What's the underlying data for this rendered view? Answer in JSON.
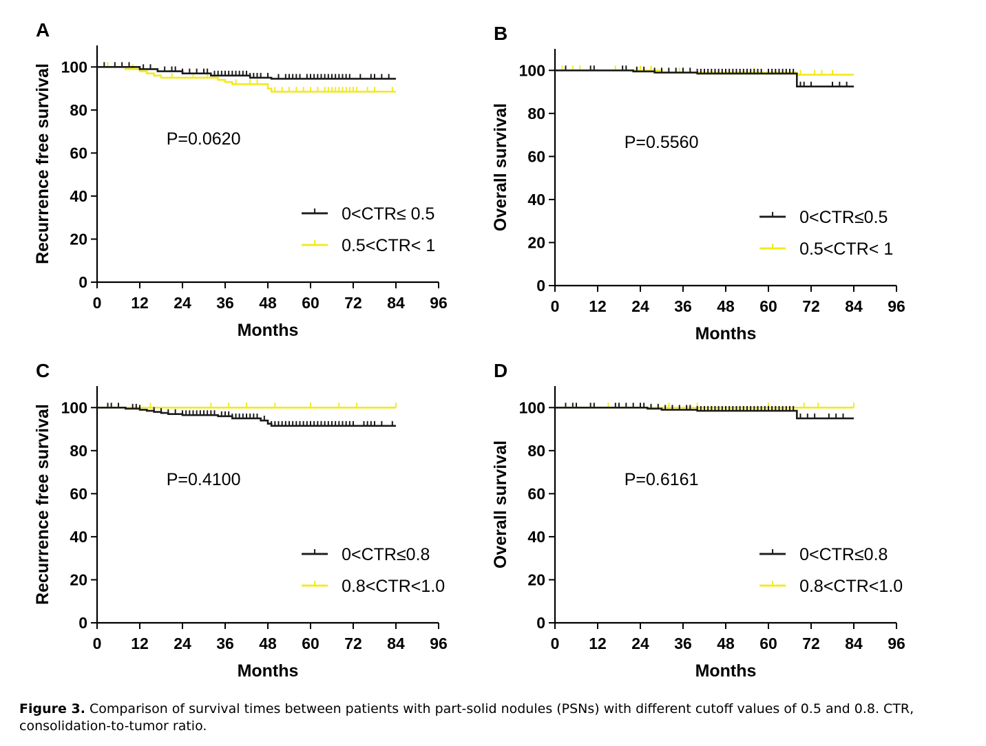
{
  "caption": {
    "label": "Figure 3.",
    "text": " Comparison of survival times between patients with part-solid nodules (PSNs) with different cutoff values of 0.5 and 0.8. CTR, consolidation-to-tumor ratio."
  },
  "colors": {
    "black": "#1a1a1a",
    "yellow": "#f2ea1c"
  },
  "chart_data": [
    {
      "panel": "A",
      "type": "line",
      "ylabel": "Recurrence free survival",
      "xlabel": "Months",
      "xticks": [
        0,
        12,
        24,
        36,
        48,
        60,
        72,
        84,
        96
      ],
      "yticks": [
        0,
        20,
        40,
        60,
        80,
        100
      ],
      "xlim": [
        0,
        96
      ],
      "ylim": [
        0,
        110
      ],
      "pvalue": "P=0.0620",
      "legend_position": "bottom-right",
      "series": [
        {
          "name": "0<CTR≤ 0.5",
          "color": "#1a1a1a",
          "x": [
            0,
            12,
            17,
            24,
            32,
            43,
            49,
            84
          ],
          "y": [
            100,
            99,
            98,
            97,
            96,
            95,
            94.5,
            94.5
          ],
          "censor": [
            2,
            5,
            7,
            9,
            13,
            15,
            19,
            21,
            22,
            24,
            26,
            28,
            30,
            31,
            33,
            34,
            35,
            36,
            37,
            38,
            39,
            40,
            41,
            42,
            43,
            44,
            45,
            46,
            48,
            51,
            53,
            54,
            55,
            56,
            57,
            59,
            60,
            61,
            62,
            63,
            64,
            65,
            66,
            67,
            68,
            69,
            70,
            71,
            74,
            77,
            78,
            80,
            82
          ]
        },
        {
          "name": "0.5<CTR< 1",
          "color": "#f2ea1c",
          "x": [
            0,
            8,
            12,
            14,
            16,
            18,
            20,
            34,
            36,
            38,
            48,
            49,
            84
          ],
          "y": [
            100,
            99,
            98,
            97,
            96,
            95,
            95,
            94,
            93,
            92,
            90,
            88.5,
            88.5
          ],
          "censor": [
            3,
            10,
            21,
            27,
            31,
            33,
            39,
            43,
            45,
            50,
            52,
            54,
            56,
            58,
            60,
            62,
            64,
            65,
            66,
            67,
            68,
            69,
            70,
            71,
            72,
            73,
            76,
            78,
            83
          ]
        }
      ]
    },
    {
      "panel": "B",
      "type": "line",
      "ylabel": "Overall survival",
      "xlabel": "Months",
      "xticks": [
        0,
        12,
        24,
        36,
        48,
        60,
        72,
        84,
        96
      ],
      "yticks": [
        0,
        20,
        40,
        60,
        80,
        100
      ],
      "xlim": [
        0,
        96
      ],
      "ylim": [
        0,
        110
      ],
      "pvalue": "P=0.5560",
      "legend_position": "bottom-right",
      "series": [
        {
          "name": "0<CTR≤0.5",
          "color": "#1a1a1a",
          "x": [
            0,
            22,
            28,
            40,
            68,
            84
          ],
          "y": [
            100,
            99.5,
            99,
            98.5,
            92.5,
            92.5
          ],
          "censor": [
            3,
            10,
            11,
            19,
            20,
            23,
            25,
            28,
            30,
            32,
            34,
            36,
            38,
            40,
            41,
            42,
            43,
            44,
            45,
            46,
            47,
            48,
            49,
            50,
            51,
            52,
            53,
            54,
            55,
            56,
            57,
            58,
            60,
            61,
            62,
            63,
            64,
            65,
            66,
            67,
            69,
            70,
            72,
            78,
            80,
            82
          ]
        },
        {
          "name": "0.5<CTR< 1",
          "color": "#f2ea1c",
          "x": [
            0,
            30,
            68,
            84
          ],
          "y": [
            100,
            99,
            98,
            98
          ],
          "censor": [
            2,
            5,
            7,
            17,
            24,
            27,
            35,
            56,
            69,
            73,
            75,
            78
          ]
        }
      ]
    },
    {
      "panel": "C",
      "type": "line",
      "ylabel": "Recurrence free survival",
      "xlabel": "Months",
      "xticks": [
        0,
        12,
        24,
        36,
        48,
        60,
        72,
        84,
        96
      ],
      "yticks": [
        0,
        20,
        40,
        60,
        80,
        100
      ],
      "xlim": [
        0,
        96
      ],
      "ylim": [
        0,
        110
      ],
      "pvalue": "P=0.4100",
      "legend_position": "bottom-right",
      "series": [
        {
          "name": "0<CTR≤0.8",
          "color": "#1a1a1a",
          "x": [
            0,
            8,
            12,
            14,
            16,
            18,
            20,
            24,
            34,
            38,
            46,
            48,
            49,
            84
          ],
          "y": [
            100,
            99.5,
            99,
            98.5,
            98,
            97.5,
            97,
            96.5,
            96,
            95,
            94,
            92.5,
            91.5,
            91.5
          ],
          "censor": [
            3,
            4,
            6,
            10,
            11,
            12,
            16,
            18,
            20,
            22,
            24,
            25,
            26,
            27,
            28,
            29,
            30,
            31,
            32,
            33,
            35,
            36,
            37,
            38,
            39,
            40,
            41,
            42,
            43,
            44,
            45,
            47,
            49,
            50,
            51,
            52,
            53,
            54,
            55,
            56,
            57,
            58,
            59,
            60,
            61,
            62,
            63,
            64,
            65,
            66,
            67,
            68,
            69,
            70,
            71,
            72,
            75,
            76,
            77,
            78,
            80,
            83
          ]
        },
        {
          "name": "0.8<CTR<1.0",
          "color": "#f2ea1c",
          "x": [
            0,
            84
          ],
          "y": [
            100,
            100
          ],
          "censor": [
            15,
            32,
            37,
            42,
            50,
            60,
            68,
            73,
            84
          ]
        }
      ]
    },
    {
      "panel": "D",
      "type": "line",
      "ylabel": "Overall survival",
      "xlabel": "Months",
      "xticks": [
        0,
        12,
        24,
        36,
        48,
        60,
        72,
        84,
        96
      ],
      "yticks": [
        0,
        20,
        40,
        60,
        80,
        100
      ],
      "xlim": [
        0,
        96
      ],
      "ylim": [
        0,
        110
      ],
      "pvalue": "P=0.6161",
      "legend_position": "bottom-right",
      "series": [
        {
          "name": "0<CTR≤0.8",
          "color": "#1a1a1a",
          "x": [
            0,
            26,
            30,
            40,
            68,
            84
          ],
          "y": [
            100,
            99.5,
            99,
            98.5,
            95,
            95
          ],
          "censor": [
            3,
            5,
            6,
            10,
            11,
            17,
            18,
            20,
            22,
            24,
            25,
            27,
            29,
            31,
            33,
            35,
            37,
            38,
            40,
            41,
            42,
            43,
            44,
            45,
            46,
            47,
            48,
            49,
            50,
            51,
            52,
            53,
            54,
            55,
            56,
            57,
            58,
            59,
            60,
            61,
            62,
            63,
            64,
            65,
            66,
            67,
            69,
            71,
            73,
            77,
            79,
            81
          ]
        },
        {
          "name": "0.8<CTR<1.0",
          "color": "#f2ea1c",
          "x": [
            0,
            84
          ],
          "y": [
            100,
            100
          ],
          "censor": [
            15,
            32,
            40,
            60,
            70,
            74,
            84
          ]
        }
      ]
    }
  ]
}
